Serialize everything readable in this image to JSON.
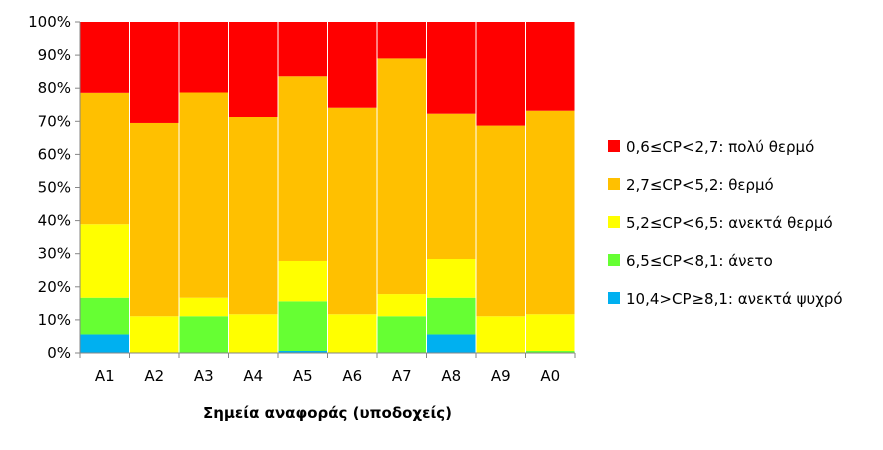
{
  "chart_data": {
    "type": "bar",
    "stacked": "percent",
    "categories": [
      "A1",
      "A2",
      "A3",
      "A4",
      "A5",
      "A6",
      "A7",
      "A8",
      "A9",
      "A0"
    ],
    "series": [
      {
        "name": "10,4>CP≥8,1: ανεκτά ψυχρό",
        "color": "#00B0F0",
        "values": [
          5.6,
          0,
          0,
          0,
          0.6,
          0,
          0,
          5.6,
          0,
          0
        ]
      },
      {
        "name": "6,5≤CP<8,1: άνετο",
        "color": "#66FF33",
        "values": [
          11.1,
          0,
          11.1,
          0,
          15.0,
          0,
          11.1,
          11.1,
          0,
          0.6
        ]
      },
      {
        "name": "5,2≤CP<6,5: ανεκτά θερμό",
        "color": "#FFFF00",
        "values": [
          22.2,
          11.1,
          5.6,
          11.7,
          12.2,
          11.7,
          6.7,
          11.7,
          11.1,
          11.1
        ]
      },
      {
        "name": "2,7≤CP<5,2: θερμό",
        "color": "#FFC000",
        "values": [
          39.7,
          58.4,
          62.0,
          59.6,
          55.8,
          62.4,
          71.2,
          43.9,
          57.6,
          61.5
        ]
      },
      {
        "name": "0,6≤CP<2,7: πολύ θερμό",
        "color": "#FF0000",
        "values": [
          21.4,
          30.5,
          21.3,
          28.7,
          16.4,
          25.9,
          11.0,
          27.7,
          31.3,
          26.8
        ]
      }
    ],
    "legend_order": [
      4,
      3,
      2,
      1,
      0
    ],
    "ylim": [
      0,
      100
    ],
    "yticks": [
      "0%",
      "10%",
      "20%",
      "30%",
      "40%",
      "50%",
      "60%",
      "70%",
      "80%",
      "90%",
      "100%"
    ],
    "xlabel": "Σημεία αναφοράς (υποδοχείς)",
    "ylabel": "",
    "title": "",
    "grid": false,
    "legend_position": "right"
  }
}
